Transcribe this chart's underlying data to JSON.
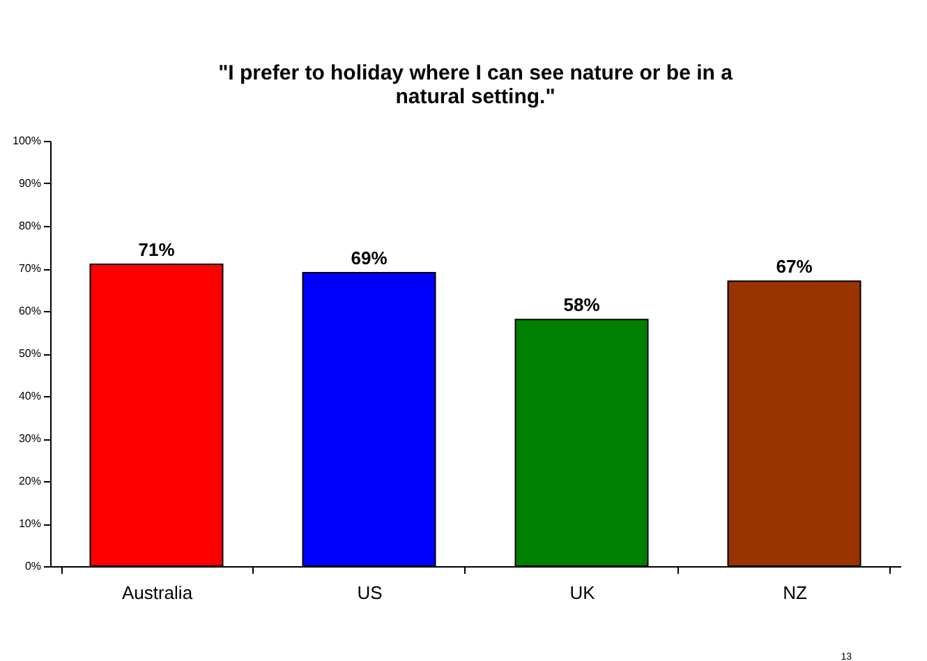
{
  "chart_data": {
    "type": "bar",
    "title": "\"I prefer to holiday where I can see nature or be in a natural setting.\"",
    "categories": [
      "Australia",
      "US",
      "UK",
      "NZ"
    ],
    "values": [
      71,
      69,
      58,
      67
    ],
    "colors": [
      "#ff0000",
      "#0000ff",
      "#008000",
      "#993300"
    ],
    "value_labels": [
      "71%",
      "69%",
      "58%",
      "67%"
    ],
    "ylim": [
      0,
      100
    ],
    "yticks": [
      {
        "value": 0,
        "label": "0%"
      },
      {
        "value": 10,
        "label": "10%"
      },
      {
        "value": 20,
        "label": "20%"
      },
      {
        "value": 30,
        "label": "30%"
      },
      {
        "value": 40,
        "label": "40%"
      },
      {
        "value": 50,
        "label": "50%"
      },
      {
        "value": 60,
        "label": "60%"
      },
      {
        "value": 70,
        "label": "70%"
      },
      {
        "value": 80,
        "label": "80%"
      },
      {
        "value": 90,
        "label": "90%"
      },
      {
        "value": 100,
        "label": "100%"
      }
    ],
    "grid": false,
    "annotations": [
      "13"
    ]
  }
}
